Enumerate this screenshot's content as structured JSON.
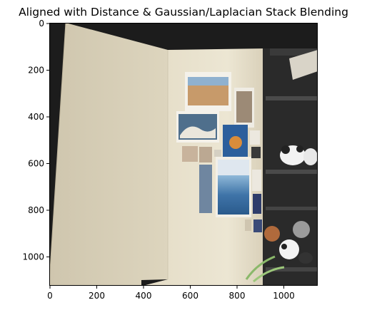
{
  "figure": {
    "title": "Aligned with Distance & Gaussian/Laplacian Stack Blending"
  },
  "axes": {
    "x_ticks": [
      "0",
      "200",
      "400",
      "600",
      "800",
      "1000"
    ],
    "y_ticks": [
      "0",
      "200",
      "400",
      "600",
      "800",
      "1000"
    ],
    "xlim": [
      0,
      1145
    ],
    "ylim": [
      1130,
      0
    ]
  },
  "colors": {
    "background_black": "#1c1c1c",
    "left_panel": "#d8cfb8",
    "wall": "#e6dfc8",
    "shelf": "#2a2a2a"
  }
}
